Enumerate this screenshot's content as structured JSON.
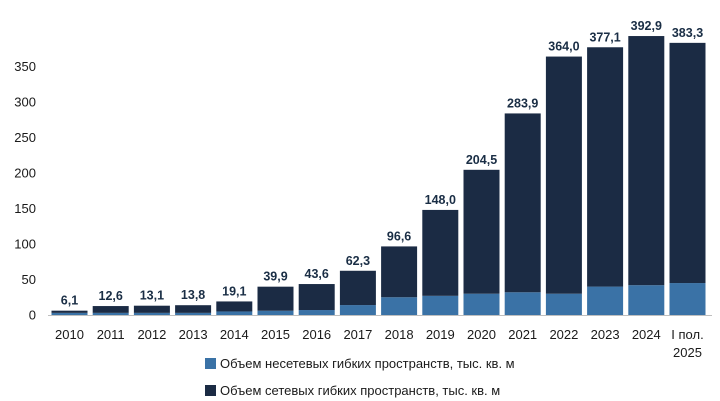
{
  "chart_data": {
    "type": "bar",
    "stacked": true,
    "categories": [
      "2010",
      "2011",
      "2012",
      "2013",
      "2014",
      "2015",
      "2016",
      "2017",
      "2018",
      "2019",
      "2020",
      "2021",
      "2022",
      "2023",
      "2024",
      "I пол. 2025"
    ],
    "totals": [
      "6,1",
      "12,6",
      "13,1",
      "13,8",
      "19,1",
      "39,9",
      "43,6",
      "62,3",
      "96,6",
      "148,0",
      "204,5",
      "283,9",
      "364,0",
      "377,1",
      "392,9",
      "383,3"
    ],
    "series": [
      {
        "name": "Объем несетевых гибких пространств, тыс. кв. м",
        "color": "#3a72a6",
        "values": [
          3,
          3,
          3,
          3,
          5,
          6,
          7,
          14,
          25,
          27,
          30,
          32,
          30,
          40,
          42,
          45
        ]
      },
      {
        "name": "Объем сетевых гибких пространств, тыс. кв. м",
        "color": "#1b2b44",
        "values": [
          3.1,
          9.6,
          10.1,
          10.8,
          14.1,
          33.9,
          36.6,
          48.3,
          71.6,
          121.0,
          174.5,
          251.9,
          334.0,
          337.1,
          350.9,
          338.3
        ]
      }
    ],
    "yticks": [
      "0",
      "50",
      "100",
      "150",
      "200",
      "250",
      "300",
      "350"
    ],
    "ylim": [
      0,
      400
    ],
    "grid": false,
    "legend_position": "bottom"
  }
}
